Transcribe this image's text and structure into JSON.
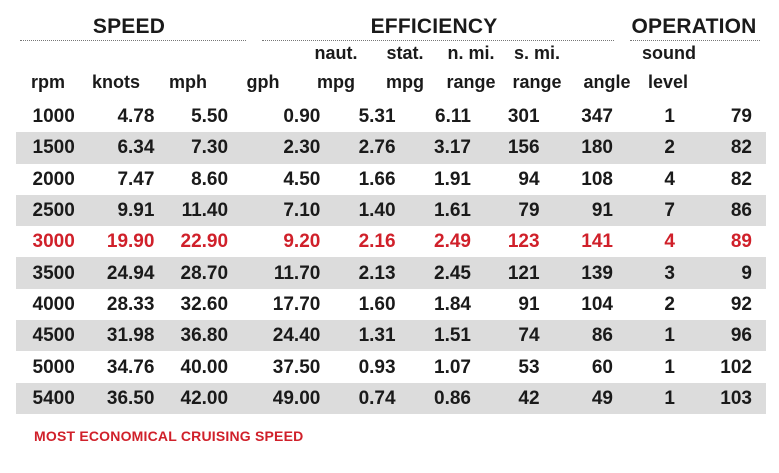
{
  "chart_data": {
    "type": "table",
    "groups": [
      {
        "label": "SPEED"
      },
      {
        "label": "EFFICIENCY"
      },
      {
        "label": "OPERATION"
      }
    ],
    "columns": [
      {
        "top": "",
        "bottom": "rpm"
      },
      {
        "top": "",
        "bottom": "knots"
      },
      {
        "top": "",
        "bottom": "mph"
      },
      {
        "top": "",
        "bottom": "gph"
      },
      {
        "top": "naut.",
        "bottom": "mpg"
      },
      {
        "top": "stat.",
        "bottom": "mpg"
      },
      {
        "top": "n. mi.",
        "bottom": "range"
      },
      {
        "top": "s. mi.",
        "bottom": "range"
      },
      {
        "top": "",
        "bottom": "angle"
      },
      {
        "top": "sound",
        "bottom": "level"
      }
    ],
    "rows": [
      [
        "1000",
        "4.78",
        "5.50",
        "0.90",
        "5.31",
        "6.11",
        "301",
        "347",
        "1",
        "79"
      ],
      [
        "1500",
        "6.34",
        "7.30",
        "2.30",
        "2.76",
        "3.17",
        "156",
        "180",
        "2",
        "82"
      ],
      [
        "2000",
        "7.47",
        "8.60",
        "4.50",
        "1.66",
        "1.91",
        "94",
        "108",
        "4",
        "82"
      ],
      [
        "2500",
        "9.91",
        "11.40",
        "7.10",
        "1.40",
        "1.61",
        "79",
        "91",
        "7",
        "86"
      ],
      [
        "3000",
        "19.90",
        "22.90",
        "9.20",
        "2.16",
        "2.49",
        "123",
        "141",
        "4",
        "89"
      ],
      [
        "3500",
        "24.94",
        "28.70",
        "11.70",
        "2.13",
        "2.45",
        "121",
        "139",
        "3",
        "9"
      ],
      [
        "4000",
        "28.33",
        "32.60",
        "17.70",
        "1.60",
        "1.84",
        "91",
        "104",
        "2",
        "92"
      ],
      [
        "4500",
        "31.98",
        "36.80",
        "24.40",
        "1.31",
        "1.51",
        "74",
        "86",
        "1",
        "96"
      ],
      [
        "5000",
        "34.76",
        "40.00",
        "37.50",
        "0.93",
        "1.07",
        "53",
        "60",
        "1",
        "102"
      ],
      [
        "5400",
        "36.50",
        "42.00",
        "49.00",
        "0.74",
        "0.86",
        "42",
        "49",
        "1",
        "103"
      ]
    ],
    "highlight_row_index": 4,
    "highlight_color": "#d0202a",
    "stripe_color": "#dcdcdc",
    "footnote": "MOST ECONOMICAL CRUISING SPEED"
  }
}
